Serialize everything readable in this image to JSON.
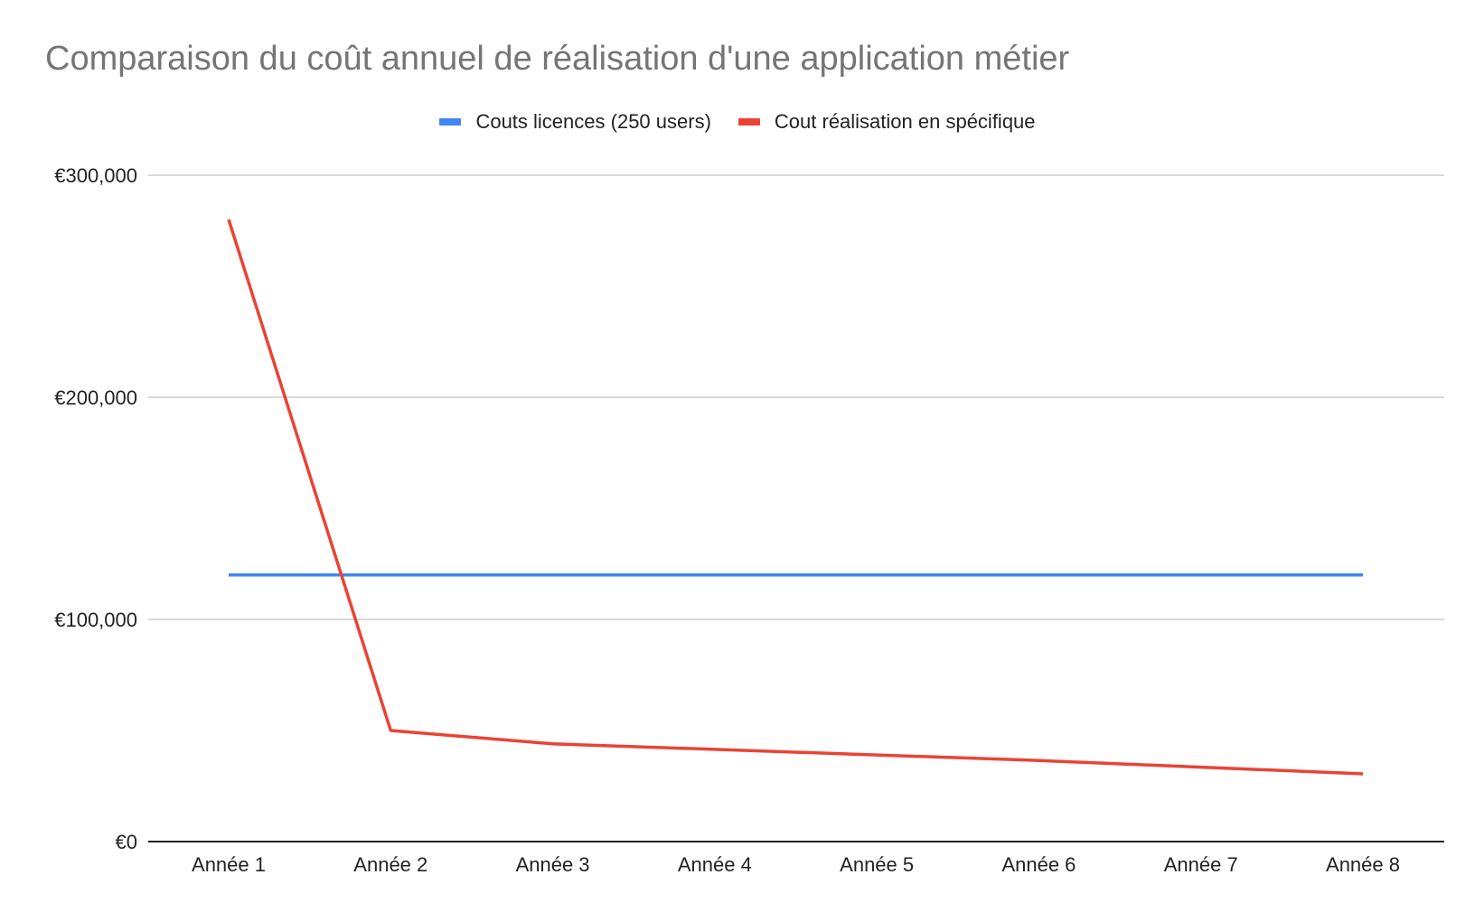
{
  "chart_data": {
    "type": "line",
    "title": "Comparaison du coût annuel de réalisation d'une application métier",
    "xlabel": "",
    "ylabel": "",
    "categories": [
      "Année 1",
      "Année 2",
      "Année 3",
      "Année 4",
      "Année 5",
      "Année 6",
      "Année 7",
      "Année 8"
    ],
    "series": [
      {
        "name": "Couts licences (250 users)",
        "color": "#4285f4",
        "values": [
          120000,
          120000,
          120000,
          120000,
          120000,
          120000,
          120000,
          120000
        ]
      },
      {
        "name": "Cout réalisation en spécifique",
        "color": "#ea4335",
        "values": [
          280000,
          50000,
          44000,
          41500,
          39000,
          36500,
          33500,
          30500
        ]
      }
    ],
    "ylim": [
      0,
      300000
    ],
    "yticks": [
      0,
      100000,
      200000,
      300000
    ],
    "ytick_labels": [
      "€0",
      "€100,000",
      "€200,000",
      "€300,000"
    ],
    "grid": true,
    "legend_position": "top-center"
  }
}
